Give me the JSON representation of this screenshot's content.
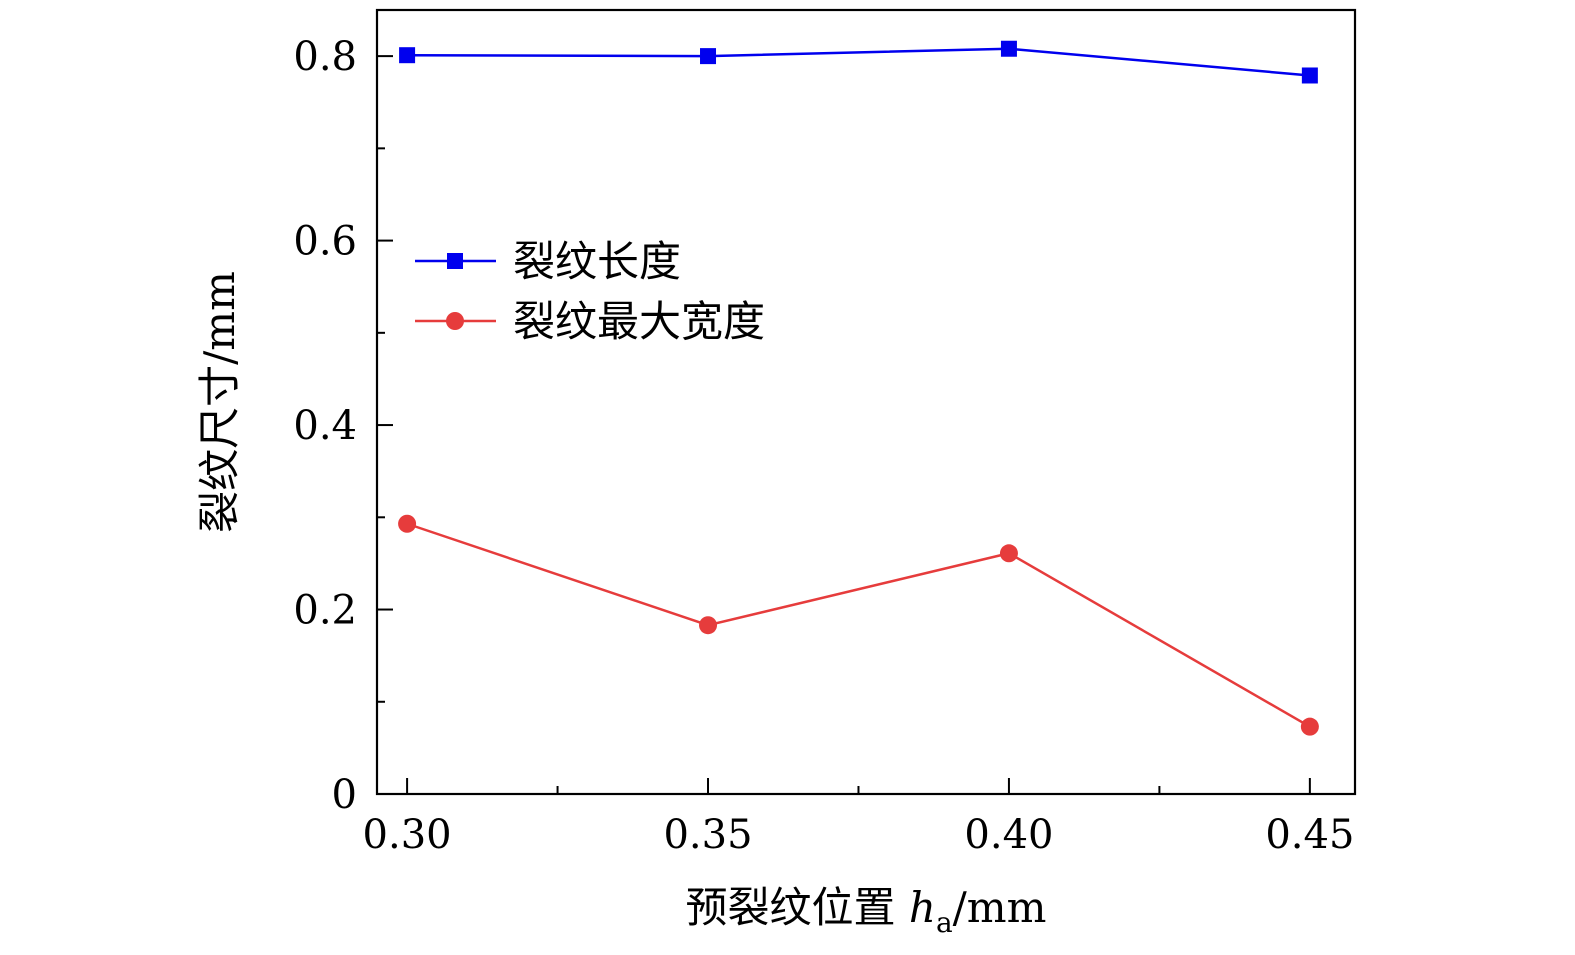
{
  "chart_data": {
    "type": "line",
    "x": [
      0.3,
      0.35,
      0.4,
      0.45
    ],
    "x_tick_labels": [
      "0.30",
      "0.35",
      "0.40",
      "0.45"
    ],
    "y_tick_labels": [
      "0",
      "0.2",
      "0.4",
      "0.6",
      "0.8"
    ],
    "y_ticks": [
      0,
      0.2,
      0.4,
      0.6,
      0.8
    ],
    "xlim": [
      0.295,
      0.4575
    ],
    "ylim": [
      0,
      0.85
    ],
    "xlabel": {
      "prefix": "预裂纹位置 ",
      "var": "h",
      "sub": "a",
      "suffix": "/mm"
    },
    "ylabel": "裂纹尺寸/mm",
    "grid": false,
    "legend_position": "upper-left",
    "series": [
      {
        "name": "裂纹长度",
        "color": "#0000ee",
        "marker": "square",
        "values": [
          0.801,
          0.8,
          0.808,
          0.779
        ]
      },
      {
        "name": "裂纹最大宽度",
        "color": "#e63c3c",
        "marker": "circle",
        "values": [
          0.293,
          0.183,
          0.261,
          0.073
        ]
      }
    ]
  }
}
